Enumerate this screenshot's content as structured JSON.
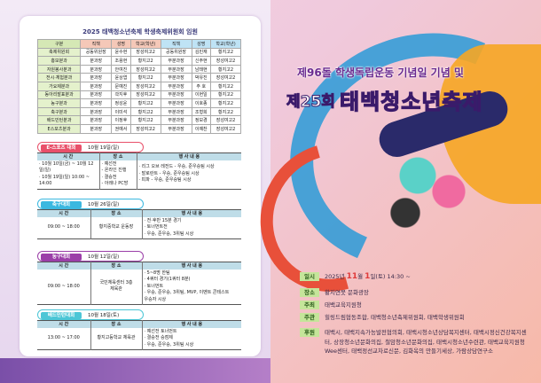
{
  "committee": {
    "title": "2025 태백청소년축제 학생축제위원회 임원",
    "headers": [
      "구분",
      "직책",
      "성명",
      "학교(학년)",
      "직책",
      "성명",
      "학교(학년)"
    ],
    "rows": [
      [
        "축제위원회",
        "공동위원장",
        "윤수현",
        "장성여고2",
        "공동위원장",
        "김민재",
        "황지고2"
      ],
      [
        "홍보분과",
        "분과장",
        "조용현",
        "황지고2",
        "부분과장",
        "신주현",
        "장성여고2"
      ],
      [
        "자원봉사분과",
        "분과장",
        "안여진",
        "장성여고2",
        "부분과장",
        "남태현",
        "황지고2"
      ],
      [
        "전시·체험분과",
        "분과장",
        "윤상엽",
        "황지고2",
        "부분과장",
        "박유진",
        "장성여고2"
      ],
      [
        "가요제분과",
        "분과장",
        "문예진",
        "장성여고2",
        "부분과장",
        "주 호",
        "황지고2"
      ],
      [
        "동아리발표분과",
        "분과장",
        "곽지후",
        "장성여고2",
        "부분과장",
        "이현일",
        "황지고2"
      ],
      [
        "농구분과",
        "분과장",
        "정성윤",
        "황지고2",
        "부분과장",
        "이호종",
        "황지고2"
      ],
      [
        "축구분과",
        "분과장",
        "이미석",
        "황지고2",
        "부분과장",
        "조형희",
        "황지고2"
      ],
      [
        "배드민턴분과",
        "분과장",
        "이정후",
        "황지고2",
        "부분과장",
        "정보경",
        "장성여고2"
      ],
      [
        "E스포츠분과",
        "분과장",
        "권예서",
        "장성여고2",
        "부분과장",
        "이예찬",
        "장성여고2"
      ]
    ]
  },
  "event_headers": [
    "시 간",
    "장 소",
    "행 사 내 용"
  ],
  "events": [
    {
      "name": "E-스포츠 대회",
      "date": "10월 19일(일)",
      "color": "#e8506a",
      "time": [
        "· 10월 10일(금) ~ 10월 12일(일)",
        "· 10월 19일(일) 10:00 ~ 14:00"
      ],
      "place": [
        "· 예선전",
        "- 온라인 진행",
        "· 결승전",
        "- 아레나 PC방"
      ],
      "content": [
        "· 리그 오브 레전드 - 우승, 준우승팀 시상",
        "· 발로란트 - 우승, 준우승팀 시상",
        "· 피파 - 우승, 준우승팀 시상"
      ]
    },
    {
      "name": "축구대회",
      "date": "10월 26일(일)",
      "color": "#3bb8e0",
      "time": [
        "09:00 ~ 18:00"
      ],
      "place": [
        "황지중학교 운동장"
      ],
      "content": [
        "· 전·후반 15분 경기",
        "· 토너먼트전",
        "· 우승, 준우승, 3위팀 시상"
      ]
    },
    {
      "name": "농구대회",
      "date": "10월 12일(일)",
      "color": "#9b3fa8",
      "time": [
        "09:00 ~ 18:00"
      ],
      "place": [
        "국민체육센터 3층",
        "체육관"
      ],
      "content": [
        "· 5~8명 한팀",
        "· 4쿼터 경기(1쿼터 8분)",
        "· 토너먼트",
        "· 우승, 준우승, 3위팀, MVP, 이벤트 콘테스트",
        "우승자 시상"
      ]
    },
    {
      "name": "배드민턴대회",
      "date": "10월 18일(토)",
      "color": "#4cc6d6",
      "time": [
        "13:00 ~ 17:00"
      ],
      "place": [
        "황지고등학교 체육관"
      ],
      "content": [
        "· 예선전 토너먼트",
        "· 결승전 승점제",
        "· 우승, 준우승, 3위팀 시상"
      ]
    }
  ],
  "poster": {
    "subtitle": "제96돌 학생독립운동 기념일 기념 및",
    "edition": "제25회",
    "title": "태백청소년축제",
    "info": [
      {
        "k": "일시",
        "v": [
          "2025년 ",
          "11",
          "월 ",
          "1",
          "일(토) 14:30 ~"
        ]
      },
      {
        "k": "장소",
        "v": "황지연못 문화광장"
      },
      {
        "k": "주최",
        "v": "태백교육지원청"
      },
      {
        "k": "주관",
        "v": "힐링드림협동조합, 태백청소년축제위원회, 태백학생위원회"
      },
      {
        "k": "후원",
        "v": "태백시, 태백지속가능발전협의회, 태백시청소년상담복지센터, 태백시정신건강복지센터, 상장청소년문화의집, 철암청소년문화의집, 태백시청소년수련관, 태백교육지원청Wee센터, 태백정선교차로신문, 김화옥의 만들기세상, 가람상담연구소"
      }
    ]
  },
  "colors": {
    "title_yellow": "#ffee30",
    "label_green": "#c5e59a",
    "band_purple": "#7a4fa8"
  }
}
